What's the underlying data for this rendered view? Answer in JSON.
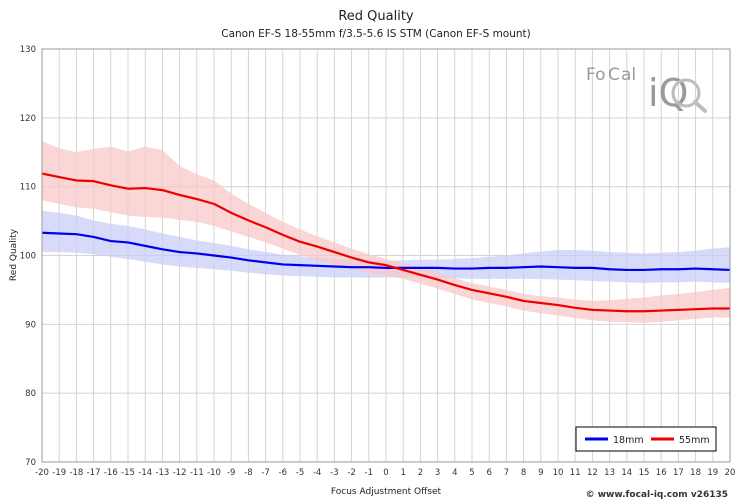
{
  "chart_data": {
    "type": "line",
    "title": "Red Quality",
    "subtitle": "Canon EF-S 18-55mm f/3.5-5.6 IS STM (Canon EF-S mount)",
    "xlabel": "Focus Adjustment Offset",
    "ylabel": "Red Quality",
    "xlim": [
      -20,
      20
    ],
    "ylim": [
      70,
      130
    ],
    "yticks": [
      70,
      80,
      90,
      100,
      110,
      120,
      130
    ],
    "grid": true,
    "legend_position": "bottom-right",
    "x": [
      -20,
      -19,
      -18,
      -17,
      -16,
      -15,
      -14,
      -13,
      -12,
      -11,
      -10,
      -9,
      -8,
      -7,
      -6,
      -5,
      -4,
      -3,
      -2,
      -1,
      0,
      1,
      2,
      3,
      4,
      5,
      6,
      7,
      8,
      9,
      10,
      11,
      12,
      13,
      14,
      15,
      16,
      17,
      18,
      19,
      20
    ],
    "series": [
      {
        "name": "18mm",
        "color": "#0000ee",
        "band_color": "#c9cdf5",
        "values": [
          103.3,
          103.2,
          103.1,
          102.7,
          102.1,
          101.9,
          101.4,
          100.9,
          100.5,
          100.3,
          100.0,
          99.7,
          99.3,
          99.0,
          98.7,
          98.6,
          98.5,
          98.4,
          98.3,
          98.3,
          98.2,
          98.2,
          98.2,
          98.2,
          98.1,
          98.1,
          98.2,
          98.2,
          98.3,
          98.4,
          98.3,
          98.2,
          98.2,
          98.0,
          97.9,
          97.9,
          98.0,
          98.0,
          98.1,
          98.0,
          97.9
        ],
        "upper": [
          106.5,
          106.2,
          105.8,
          105.1,
          104.6,
          104.3,
          103.8,
          103.2,
          102.7,
          102.2,
          101.8,
          101.4,
          100.9,
          100.5,
          100.1,
          99.9,
          99.7,
          99.5,
          99.4,
          99.3,
          99.2,
          99.3,
          99.4,
          99.4,
          99.5,
          99.6,
          99.8,
          100.0,
          100.3,
          100.6,
          100.8,
          100.8,
          100.7,
          100.5,
          100.4,
          100.3,
          100.4,
          100.5,
          100.7,
          101.0,
          101.2
        ],
        "lower": [
          100.5,
          100.5,
          100.4,
          100.2,
          99.8,
          99.5,
          99.1,
          98.7,
          98.4,
          98.2,
          98.0,
          97.8,
          97.5,
          97.3,
          97.1,
          97.0,
          96.9,
          96.8,
          96.8,
          96.8,
          96.8,
          96.8,
          96.8,
          96.8,
          96.7,
          96.6,
          96.6,
          96.6,
          96.6,
          96.6,
          96.5,
          96.4,
          96.3,
          96.2,
          96.1,
          96.0,
          96.1,
          96.1,
          96.2,
          96.1,
          96.0
        ]
      },
      {
        "name": "55mm",
        "color": "#ee0000",
        "band_color": "#f8c8c8",
        "values": [
          111.9,
          111.4,
          110.9,
          110.8,
          110.2,
          109.7,
          109.8,
          109.5,
          108.8,
          108.2,
          107.5,
          106.2,
          105.1,
          104.1,
          103.0,
          102.0,
          101.3,
          100.5,
          99.7,
          99.0,
          98.6,
          97.9,
          97.2,
          96.5,
          95.7,
          95.0,
          94.5,
          94.0,
          93.4,
          93.1,
          92.8,
          92.4,
          92.1,
          92.0,
          91.9,
          91.9,
          92.0,
          92.1,
          92.2,
          92.3,
          92.3
        ],
        "upper": [
          116.6,
          115.6,
          115.0,
          115.5,
          115.8,
          115.1,
          115.8,
          115.3,
          113.0,
          111.8,
          110.9,
          109.0,
          107.5,
          106.2,
          104.9,
          103.8,
          102.8,
          101.9,
          101.0,
          100.2,
          99.5,
          98.9,
          98.2,
          97.5,
          96.7,
          96.0,
          95.5,
          95.0,
          94.4,
          94.1,
          93.9,
          93.6,
          93.4,
          93.5,
          93.7,
          93.9,
          94.2,
          94.4,
          94.7,
          95.0,
          95.3
        ],
        "lower": [
          108.0,
          107.5,
          107.0,
          106.8,
          106.3,
          105.8,
          105.6,
          105.5,
          105.2,
          104.9,
          104.3,
          103.5,
          102.7,
          101.9,
          101.0,
          100.1,
          99.4,
          98.7,
          98.0,
          97.5,
          97.1,
          96.6,
          95.9,
          95.2,
          94.4,
          93.6,
          93.1,
          92.6,
          92.0,
          91.6,
          91.3,
          90.9,
          90.6,
          90.4,
          90.3,
          90.2,
          90.4,
          90.6,
          90.8,
          91.0,
          91.0
        ]
      }
    ]
  },
  "watermark": {
    "text_left": "Fo",
    "text_c": "C",
    "text_right": "al",
    "text_iq": "iQ",
    "accent_color": "#d9a07a"
  },
  "footer": "© www.focal-iq.com  v26135"
}
